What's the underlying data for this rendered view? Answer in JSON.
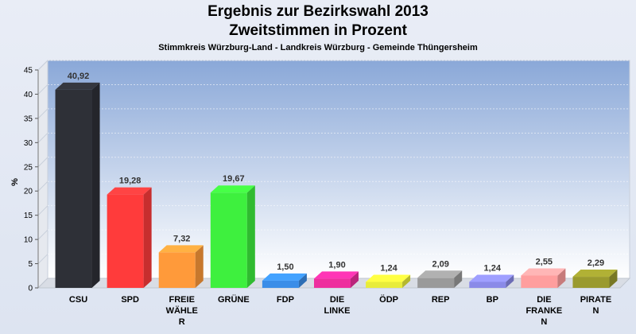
{
  "chart_data": {
    "type": "bar",
    "title": "Ergebnis zur Bezirkswahl 2013",
    "title2": "Zweitstimmen in Prozent",
    "subtitle": "Stimmkreis Würzburg-Land - Landkreis Würzburg - Gemeinde Thüngersheim",
    "ylabel": "%",
    "ylim": [
      0,
      45
    ],
    "yticks": [
      0,
      5,
      10,
      15,
      20,
      25,
      30,
      35,
      40,
      45
    ],
    "grid": true,
    "categories": [
      [
        "CSU"
      ],
      [
        "SPD"
      ],
      [
        "FREIE",
        "WÄHLE",
        "R"
      ],
      [
        "GRÜNE"
      ],
      [
        "FDP"
      ],
      [
        "DIE",
        "LINKE"
      ],
      [
        "ÖDP"
      ],
      [
        "REP"
      ],
      [
        "BP"
      ],
      [
        "DIE",
        "FRANKE",
        "N"
      ],
      [
        "PIRATE",
        "N"
      ]
    ],
    "values": [
      40.92,
      19.28,
      7.32,
      19.67,
      1.5,
      1.9,
      1.24,
      2.09,
      1.24,
      2.55,
      2.29
    ],
    "value_labels": [
      "40,92",
      "19,28",
      "7,32",
      "19,67",
      "1,50",
      "1,90",
      "1,24",
      "2,09",
      "1,24",
      "2,55",
      "2,29"
    ],
    "colors": [
      "#2e3037",
      "#ff3b3b",
      "#ff9a3a",
      "#3ef03e",
      "#3a8de8",
      "#ee2f9e",
      "#e8ec3a",
      "#9a9a9a",
      "#8a8ae8",
      "#ff9e9e",
      "#9a9a2e"
    ]
  }
}
